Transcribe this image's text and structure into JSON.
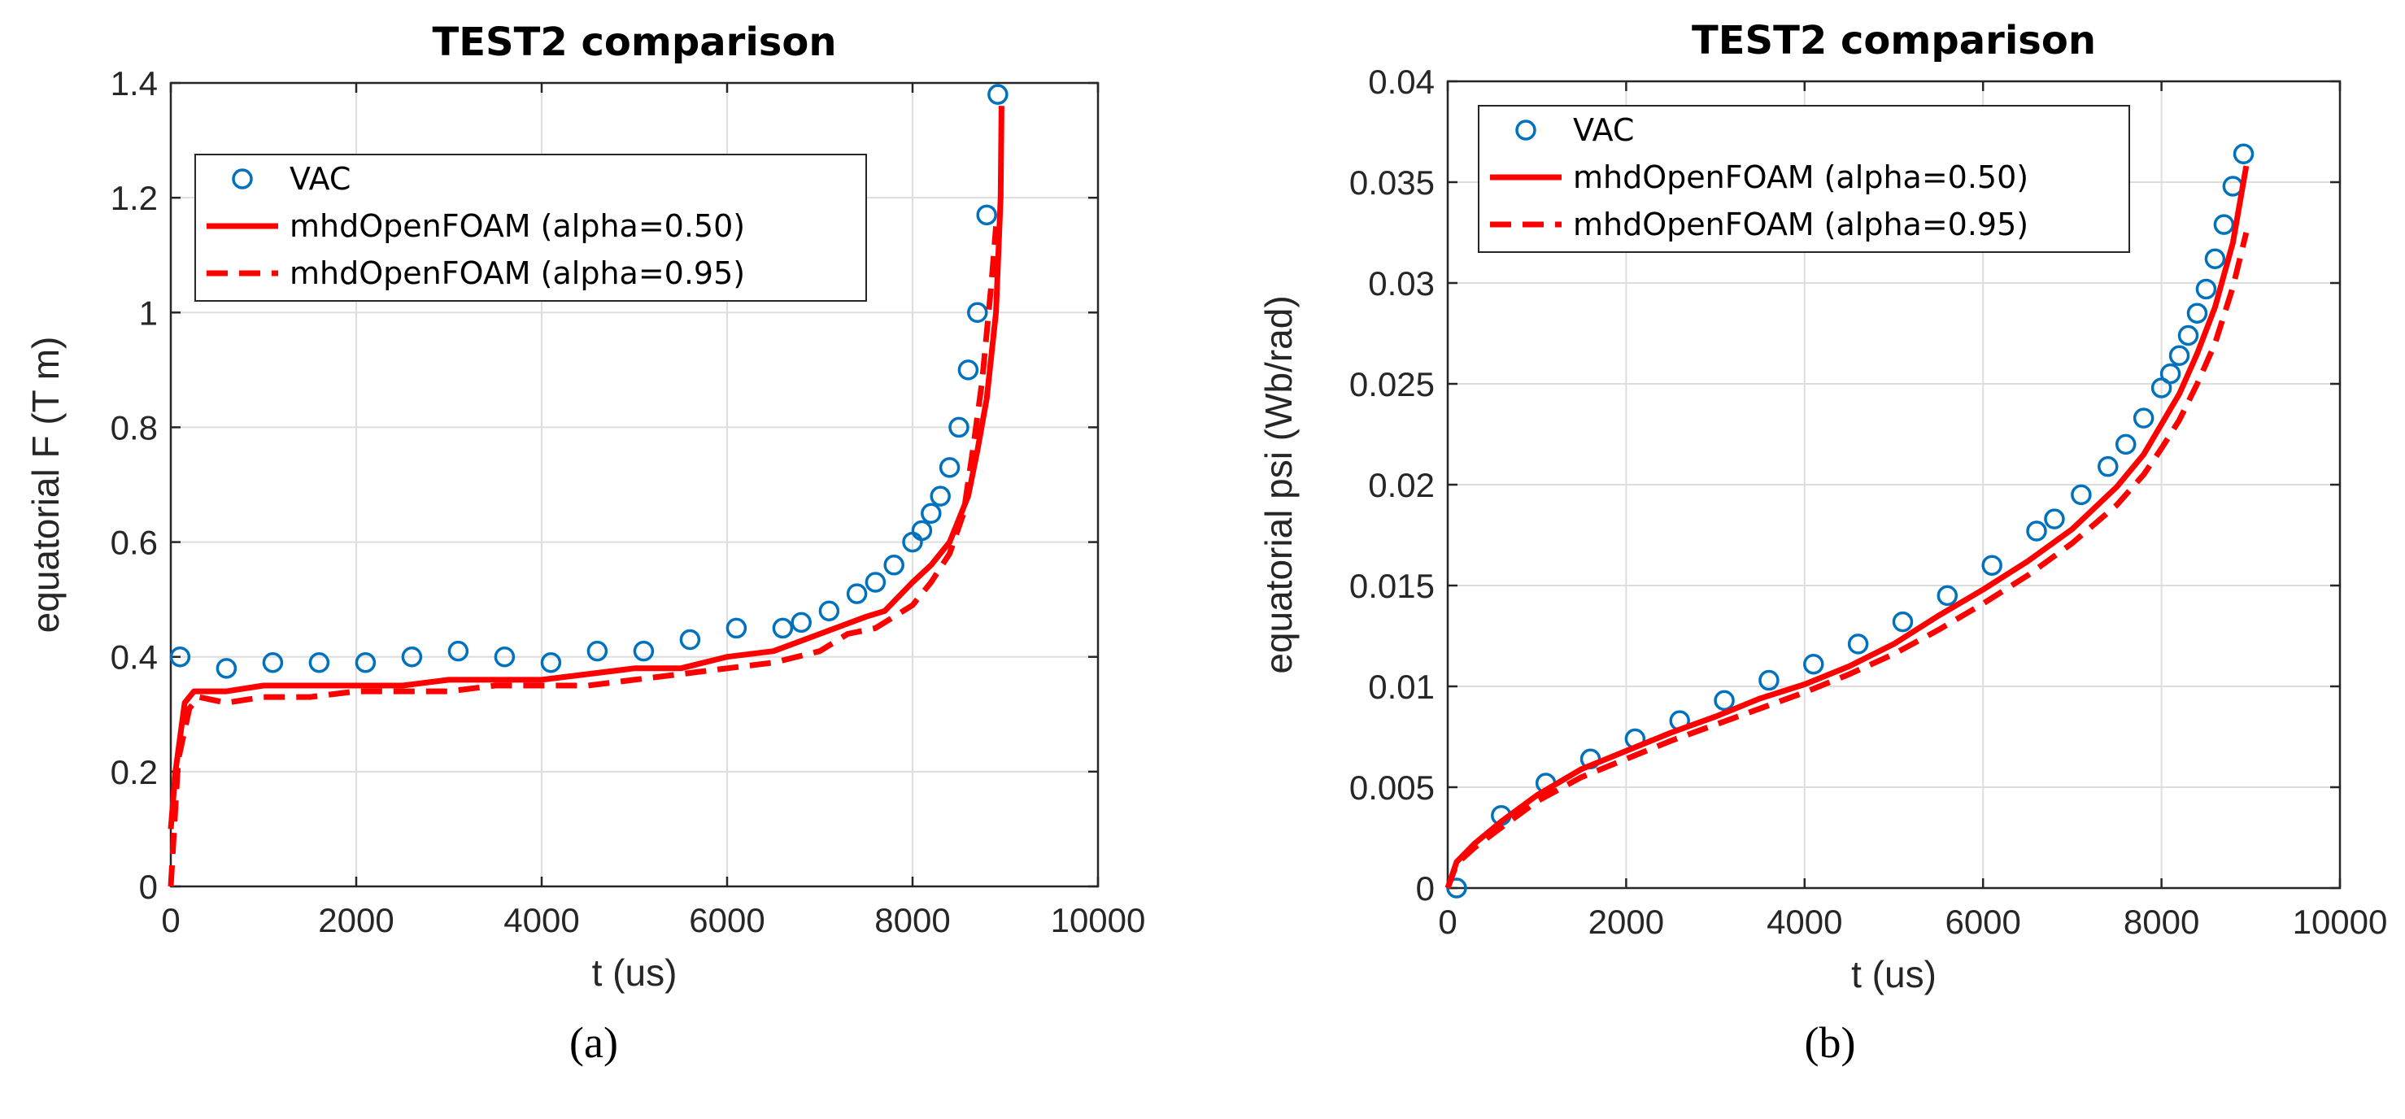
{
  "colors": {
    "vac": "#0072BD",
    "sim": "#FF0000",
    "grid": "#DDDDDD",
    "axis": "#262626"
  },
  "chart_data": [
    {
      "panel_label": "(a)",
      "type": "line",
      "title": "TEST2 comparison",
      "xlabel": "t (us)",
      "ylabel": "equatorial F (T m)",
      "xlim": [
        0,
        10000
      ],
      "ylim": [
        0,
        1.4
      ],
      "xticks": [
        0,
        2000,
        4000,
        6000,
        8000,
        10000
      ],
      "xtick_labels": [
        "0",
        "2000",
        "4000",
        "6000",
        "8000",
        "10000"
      ],
      "yticks": [
        0,
        0.2,
        0.4,
        0.6,
        0.8,
        1.0,
        1.2,
        1.4
      ],
      "ytick_labels": [
        "0",
        "0.2",
        "0.4",
        "0.6",
        "0.8",
        "1",
        "1.2",
        "1.4"
      ],
      "grid": true,
      "legend_position": "upper-left",
      "series": [
        {
          "name": "VAC",
          "style": "markers",
          "x": [
            100,
            600,
            1100,
            1600,
            2100,
            2600,
            3100,
            3600,
            4100,
            4600,
            5100,
            5600,
            6100,
            6600,
            6800,
            7100,
            7400,
            7600,
            7800,
            8000,
            8100,
            8200,
            8300,
            8400,
            8500,
            8600,
            8700,
            8800,
            8920
          ],
          "y": [
            0.4,
            0.38,
            0.39,
            0.39,
            0.39,
            0.4,
            0.41,
            0.4,
            0.39,
            0.41,
            0.41,
            0.43,
            0.45,
            0.45,
            0.46,
            0.48,
            0.51,
            0.53,
            0.56,
            0.6,
            0.62,
            0.65,
            0.68,
            0.73,
            0.8,
            0.9,
            1.0,
            1.17,
            1.38
          ]
        },
        {
          "name": "mhdOpenFOAM (alpha=0.50)",
          "style": "solid",
          "x": [
            0,
            50,
            150,
            250,
            600,
            1000,
            1500,
            2000,
            2500,
            3000,
            3500,
            4000,
            4500,
            5000,
            5500,
            6000,
            6500,
            7000,
            7500,
            7700,
            8000,
            8200,
            8400,
            8600,
            8700,
            8800,
            8900,
            8950,
            8960
          ],
          "y": [
            0.1,
            0.2,
            0.32,
            0.34,
            0.34,
            0.35,
            0.35,
            0.35,
            0.35,
            0.36,
            0.36,
            0.36,
            0.37,
            0.38,
            0.38,
            0.4,
            0.41,
            0.44,
            0.47,
            0.48,
            0.53,
            0.56,
            0.6,
            0.68,
            0.76,
            0.85,
            1.0,
            1.2,
            1.36
          ]
        },
        {
          "name": "mhdOpenFOAM (alpha=0.95)",
          "style": "dashed",
          "x": [
            0,
            80,
            200,
            300,
            600,
            1000,
            1500,
            2000,
            2500,
            3000,
            3500,
            4000,
            4500,
            5000,
            5500,
            6000,
            6500,
            7000,
            7300,
            7600,
            7800,
            8000,
            8200,
            8400,
            8550,
            8650,
            8750,
            8850,
            8900
          ],
          "y": [
            0.0,
            0.22,
            0.31,
            0.33,
            0.32,
            0.33,
            0.33,
            0.34,
            0.34,
            0.34,
            0.35,
            0.35,
            0.35,
            0.36,
            0.37,
            0.38,
            0.39,
            0.41,
            0.44,
            0.45,
            0.47,
            0.49,
            0.53,
            0.58,
            0.65,
            0.76,
            0.88,
            1.05,
            1.15
          ]
        }
      ]
    },
    {
      "panel_label": "(b)",
      "type": "line",
      "title": "TEST2 comparison",
      "xlabel": "t (us)",
      "ylabel": "equatorial psi (Wb/rad)",
      "xlim": [
        0,
        10000
      ],
      "ylim": [
        0,
        0.04
      ],
      "xticks": [
        0,
        2000,
        4000,
        6000,
        8000,
        10000
      ],
      "xtick_labels": [
        "0",
        "2000",
        "4000",
        "6000",
        "8000",
        "10000"
      ],
      "yticks": [
        0,
        0.005,
        0.01,
        0.015,
        0.02,
        0.025,
        0.03,
        0.035,
        0.04
      ],
      "ytick_labels": [
        "0",
        "0.005",
        "0.01",
        "0.015",
        "0.02",
        "0.025",
        "0.03",
        "0.035",
        "0.04"
      ],
      "grid": true,
      "legend_position": "upper-left",
      "series": [
        {
          "name": "VAC",
          "style": "markers",
          "x": [
            100,
            600,
            1100,
            1600,
            2100,
            2600,
            3100,
            3600,
            4100,
            4600,
            5100,
            5600,
            6100,
            6600,
            6800,
            7100,
            7400,
            7600,
            7800,
            8000,
            8100,
            8200,
            8300,
            8400,
            8500,
            8600,
            8700,
            8800,
            8920
          ],
          "y": [
            0.0,
            0.0036,
            0.0052,
            0.0064,
            0.0074,
            0.0083,
            0.0093,
            0.0103,
            0.0111,
            0.0121,
            0.0132,
            0.0145,
            0.016,
            0.0177,
            0.0183,
            0.0195,
            0.0209,
            0.022,
            0.0233,
            0.0248,
            0.0255,
            0.0264,
            0.0274,
            0.0285,
            0.0297,
            0.0312,
            0.0329,
            0.0348,
            0.0364
          ]
        },
        {
          "name": "mhdOpenFOAM (alpha=0.50)",
          "style": "solid",
          "x": [
            0,
            100,
            300,
            600,
            1000,
            1500,
            2000,
            2500,
            3000,
            3500,
            4000,
            4500,
            5000,
            5500,
            6000,
            6500,
            7000,
            7500,
            7800,
            8000,
            8200,
            8400,
            8600,
            8800,
            8950
          ],
          "y": [
            0.0,
            0.0013,
            0.0022,
            0.0033,
            0.0046,
            0.0059,
            0.0068,
            0.0077,
            0.0085,
            0.0094,
            0.0101,
            0.011,
            0.0121,
            0.0135,
            0.0148,
            0.0162,
            0.0178,
            0.0199,
            0.0215,
            0.023,
            0.0245,
            0.0265,
            0.0288,
            0.032,
            0.0358
          ]
        },
        {
          "name": "mhdOpenFOAM (alpha=0.95)",
          "style": "dashed",
          "x": [
            0,
            100,
            300,
            600,
            1000,
            1500,
            2000,
            2500,
            3000,
            3500,
            4000,
            4500,
            5000,
            5500,
            6000,
            6500,
            7000,
            7500,
            7800,
            8000,
            8200,
            8400,
            8600,
            8800,
            8950
          ],
          "y": [
            0.0,
            0.0012,
            0.002,
            0.003,
            0.0043,
            0.0055,
            0.0064,
            0.0073,
            0.0081,
            0.0089,
            0.0097,
            0.0106,
            0.0116,
            0.0128,
            0.0141,
            0.0155,
            0.0171,
            0.019,
            0.0205,
            0.0218,
            0.0232,
            0.025,
            0.027,
            0.0298,
            0.0325
          ]
        }
      ]
    }
  ]
}
